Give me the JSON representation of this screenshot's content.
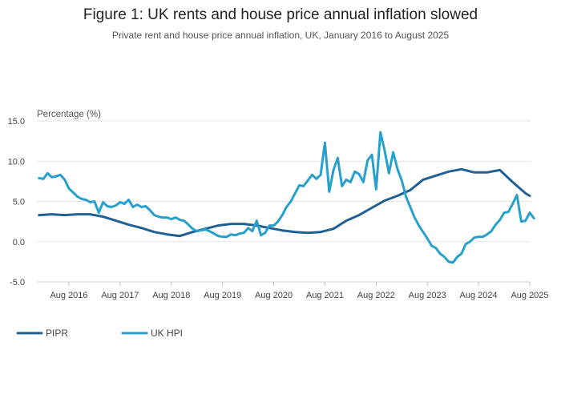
{
  "page": {
    "title": "Figure 1: UK rents and house price annual inflation slowed",
    "subtitle": "Private rent and house price annual inflation, UK, January 2016 to August 2025"
  },
  "chart_data": {
    "type": "line",
    "title": "Figure 1: UK rents and house price annual inflation slowed",
    "subtitle": "Private rent and house price annual inflation, UK, January 2016 to August 2025",
    "ylabel": "Percentage (%)",
    "xlabel": "",
    "ylim": [
      -5,
      15
    ],
    "yticks": [
      -5,
      0,
      5,
      10,
      15
    ],
    "ytick_labels": [
      "-5.0",
      "0.0",
      "5.0",
      "10.0",
      "15.0"
    ],
    "xlim": [
      "2016-01",
      "2025-08"
    ],
    "xticks": [
      "2016-08",
      "2017-08",
      "2018-08",
      "2019-08",
      "2020-08",
      "2021-08",
      "2022-08",
      "2023-08",
      "2024-08",
      "2025-08"
    ],
    "xtick_labels": [
      "Aug 2016",
      "Aug 2017",
      "Aug 2018",
      "Aug 2019",
      "Aug 2020",
      "Aug 2021",
      "Aug 2022",
      "Aug 2023",
      "Aug 2024",
      "Aug 2025"
    ],
    "grid": "horizontal",
    "legend_position": "bottom-left",
    "series": [
      {
        "name": "PIPR",
        "color": "#206095",
        "points": [
          [
            "2016-01",
            3.3
          ],
          [
            "2016-04",
            3.4
          ],
          [
            "2016-07",
            3.3
          ],
          [
            "2016-10",
            3.4
          ],
          [
            "2017-01",
            3.4
          ],
          [
            "2017-04",
            3.1
          ],
          [
            "2017-07",
            2.6
          ],
          [
            "2017-10",
            2.1
          ],
          [
            "2018-01",
            1.7
          ],
          [
            "2018-04",
            1.2
          ],
          [
            "2018-07",
            0.9
          ],
          [
            "2018-10",
            0.7
          ],
          [
            "2019-01",
            1.2
          ],
          [
            "2019-04",
            1.6
          ],
          [
            "2019-07",
            2.0
          ],
          [
            "2019-10",
            2.2
          ],
          [
            "2020-01",
            2.2
          ],
          [
            "2020-04",
            2.0
          ],
          [
            "2020-07",
            1.7
          ],
          [
            "2020-10",
            1.4
          ],
          [
            "2021-01",
            1.2
          ],
          [
            "2021-04",
            1.1
          ],
          [
            "2021-07",
            1.2
          ],
          [
            "2021-10",
            1.6
          ],
          [
            "2022-01",
            2.6
          ],
          [
            "2022-04",
            3.3
          ],
          [
            "2022-07",
            4.2
          ],
          [
            "2022-10",
            5.1
          ],
          [
            "2023-01",
            5.7
          ],
          [
            "2023-04",
            6.4
          ],
          [
            "2023-07",
            7.7
          ],
          [
            "2023-10",
            8.2
          ],
          [
            "2024-01",
            8.7
          ],
          [
            "2024-04",
            9.0
          ],
          [
            "2024-07",
            8.6
          ],
          [
            "2024-10",
            8.6
          ],
          [
            "2025-01",
            8.9
          ],
          [
            "2025-04",
            7.4
          ],
          [
            "2025-07",
            6.0
          ],
          [
            "2025-08",
            5.7
          ]
        ]
      },
      {
        "name": "UK HPI",
        "color": "#27a0cc",
        "points": [
          [
            "2016-01",
            7.9
          ],
          [
            "2016-02",
            7.8
          ],
          [
            "2016-03",
            8.5
          ],
          [
            "2016-04",
            8.0
          ],
          [
            "2016-05",
            8.1
          ],
          [
            "2016-06",
            8.3
          ],
          [
            "2016-07",
            7.7
          ],
          [
            "2016-08",
            6.6
          ],
          [
            "2016-09",
            6.1
          ],
          [
            "2016-10",
            5.6
          ],
          [
            "2016-11",
            5.3
          ],
          [
            "2016-12",
            5.2
          ],
          [
            "2017-01",
            4.9
          ],
          [
            "2017-02",
            5.0
          ],
          [
            "2017-03",
            3.6
          ],
          [
            "2017-04",
            4.9
          ],
          [
            "2017-05",
            4.4
          ],
          [
            "2017-06",
            4.3
          ],
          [
            "2017-07",
            4.5
          ],
          [
            "2017-08",
            4.9
          ],
          [
            "2017-09",
            4.7
          ],
          [
            "2017-10",
            5.2
          ],
          [
            "2017-11",
            4.3
          ],
          [
            "2017-12",
            4.6
          ],
          [
            "2018-01",
            4.3
          ],
          [
            "2018-02",
            4.4
          ],
          [
            "2018-03",
            3.9
          ],
          [
            "2018-04",
            3.3
          ],
          [
            "2018-05",
            3.1
          ],
          [
            "2018-06",
            3.0
          ],
          [
            "2018-07",
            3.0
          ],
          [
            "2018-08",
            2.8
          ],
          [
            "2018-09",
            3.0
          ],
          [
            "2018-10",
            2.7
          ],
          [
            "2018-11",
            2.6
          ],
          [
            "2018-12",
            2.1
          ],
          [
            "2019-01",
            1.6
          ],
          [
            "2019-02",
            1.3
          ],
          [
            "2019-03",
            1.4
          ],
          [
            "2019-04",
            1.5
          ],
          [
            "2019-05",
            1.3
          ],
          [
            "2019-06",
            1.0
          ],
          [
            "2019-07",
            0.7
          ],
          [
            "2019-08",
            0.6
          ],
          [
            "2019-09",
            0.6
          ],
          [
            "2019-10",
            0.9
          ],
          [
            "2019-11",
            0.8
          ],
          [
            "2019-12",
            1.0
          ],
          [
            "2020-01",
            1.1
          ],
          [
            "2020-02",
            1.7
          ],
          [
            "2020-03",
            1.3
          ],
          [
            "2020-04",
            2.6
          ],
          [
            "2020-05",
            0.8
          ],
          [
            "2020-06",
            1.1
          ],
          [
            "2020-07",
            2.0
          ],
          [
            "2020-08",
            2.0
          ],
          [
            "2020-09",
            2.5
          ],
          [
            "2020-10",
            3.3
          ],
          [
            "2020-11",
            4.3
          ],
          [
            "2020-12",
            5.0
          ],
          [
            "2021-01",
            6.0
          ],
          [
            "2021-02",
            7.0
          ],
          [
            "2021-03",
            6.9
          ],
          [
            "2021-04",
            7.6
          ],
          [
            "2021-05",
            8.3
          ],
          [
            "2021-06",
            7.8
          ],
          [
            "2021-07",
            8.3
          ],
          [
            "2021-08",
            12.3
          ],
          [
            "2021-09",
            6.2
          ],
          [
            "2021-10",
            8.9
          ],
          [
            "2021-11",
            10.4
          ],
          [
            "2021-12",
            6.9
          ],
          [
            "2022-01",
            7.7
          ],
          [
            "2022-02",
            7.4
          ],
          [
            "2022-03",
            8.7
          ],
          [
            "2022-04",
            8.4
          ],
          [
            "2022-05",
            7.4
          ],
          [
            "2022-06",
            10.1
          ],
          [
            "2022-07",
            10.8
          ],
          [
            "2022-08",
            6.5
          ],
          [
            "2022-09",
            13.6
          ],
          [
            "2022-10",
            11.3
          ],
          [
            "2022-11",
            8.5
          ],
          [
            "2022-12",
            11.1
          ],
          [
            "2023-01",
            9.0
          ],
          [
            "2023-02",
            7.6
          ],
          [
            "2023-03",
            5.6
          ],
          [
            "2023-04",
            4.3
          ],
          [
            "2023-05",
            3.0
          ],
          [
            "2023-06",
            2.0
          ],
          [
            "2023-07",
            1.2
          ],
          [
            "2023-08",
            0.4
          ],
          [
            "2023-09",
            -0.5
          ],
          [
            "2023-10",
            -0.8
          ],
          [
            "2023-11",
            -1.5
          ],
          [
            "2023-12",
            -1.9
          ],
          [
            "2024-01",
            -2.5
          ],
          [
            "2024-02",
            -2.6
          ],
          [
            "2024-03",
            -1.9
          ],
          [
            "2024-04",
            -1.5
          ],
          [
            "2024-05",
            -0.3
          ],
          [
            "2024-06",
            0.0
          ],
          [
            "2024-07",
            0.5
          ],
          [
            "2024-08",
            0.6
          ],
          [
            "2024-09",
            0.6
          ],
          [
            "2024-10",
            0.9
          ],
          [
            "2024-11",
            1.3
          ],
          [
            "2024-12",
            2.1
          ],
          [
            "2025-01",
            2.7
          ],
          [
            "2025-02",
            3.6
          ],
          [
            "2025-03",
            3.7
          ],
          [
            "2025-04",
            4.7
          ],
          [
            "2025-05",
            5.8
          ],
          [
            "2025-06",
            2.5
          ],
          [
            "2025-07",
            2.6
          ],
          [
            "2025-08",
            3.6
          ],
          [
            "2025-09",
            2.9
          ]
        ]
      }
    ]
  }
}
